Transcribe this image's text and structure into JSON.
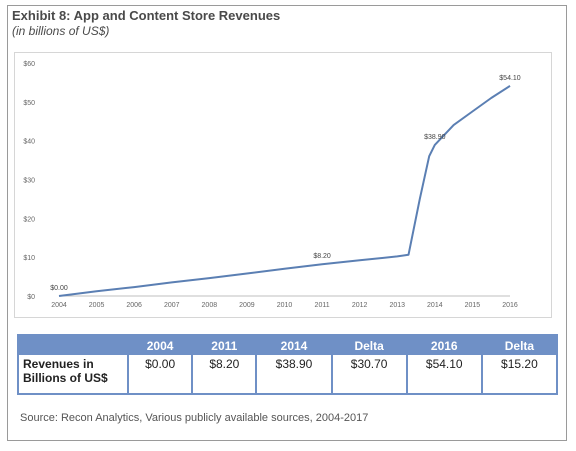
{
  "header": {
    "title": "Exhibit 8: App and Content Store Revenues",
    "subtitle": "(in billions of US$)"
  },
  "chart_data": {
    "type": "line",
    "x": [
      2004,
      2005,
      2006,
      2007,
      2008,
      2009,
      2010,
      2011,
      2012,
      2013,
      2013.3,
      2013.6,
      2013.85,
      2014,
      2014.5,
      2015,
      2015.5,
      2016
    ],
    "series": [
      {
        "values": [
          0.0,
          1.2,
          2.3,
          3.5,
          4.6,
          5.8,
          7.0,
          8.2,
          9.2,
          10.2,
          10.6,
          25.0,
          36.0,
          38.9,
          44.0,
          47.5,
          51.0,
          54.1
        ]
      }
    ],
    "point_labels": [
      {
        "x": 2004,
        "y": 0.0,
        "text": "$0.00"
      },
      {
        "x": 2011,
        "y": 8.2,
        "text": "$8.20"
      },
      {
        "x": 2014,
        "y": 38.9,
        "text": "$38.90"
      },
      {
        "x": 2016,
        "y": 54.1,
        "text": "$54.10"
      }
    ],
    "xticks": [
      "2004",
      "2005",
      "2006",
      "2007",
      "2008",
      "2009",
      "2010",
      "2011",
      "2012",
      "2013",
      "2014",
      "2015",
      "2016"
    ],
    "yticks": [
      "$0",
      "$10",
      "$20",
      "$30",
      "$40",
      "$50",
      "$60"
    ],
    "xlim": [
      2004,
      2016
    ],
    "ylim": [
      0,
      60
    ],
    "grid": false,
    "line_color": "#5b7fb3"
  },
  "table": {
    "headers": [
      "",
      "2004",
      "2011",
      "2014",
      "Delta",
      "2016",
      "Delta"
    ],
    "row_label": "Revenues in Billions of US$",
    "values": [
      "$0.00",
      "$8.20",
      "$38.90",
      "$30.70",
      "$54.10",
      "$15.20"
    ]
  },
  "footer": {
    "source": "Source: Recon Analytics, Various publicly available sources, 2004-2017"
  }
}
